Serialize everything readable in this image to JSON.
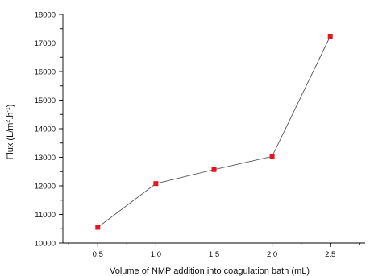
{
  "chart_data": {
    "type": "line",
    "title": "",
    "xlabel": "Volume of NMP addition into coagulation bath (mL)",
    "ylabel": "Flux (L/m",
    "ylabel_sup": "2",
    "ylabel_mid": ".h",
    "ylabel_sup2": "-1",
    "ylabel_end": ")",
    "xlim": [
      0.2,
      2.8
    ],
    "ylim": [
      10000,
      18000
    ],
    "x_ticks": [
      "0.5",
      "1.0",
      "1.5",
      "2.0",
      "2.5"
    ],
    "y_ticks": [
      "10000",
      "11000",
      "12000",
      "13000",
      "14000",
      "15000",
      "16000",
      "17000",
      "18000"
    ],
    "grid": false,
    "legend": "none",
    "series": [
      {
        "color": "#e8141e",
        "line_color": "#555555",
        "x": [
          0.5,
          1.0,
          1.5,
          2.0,
          2.5
        ],
        "y": [
          10550,
          12080,
          12570,
          13030,
          17240
        ]
      }
    ]
  }
}
